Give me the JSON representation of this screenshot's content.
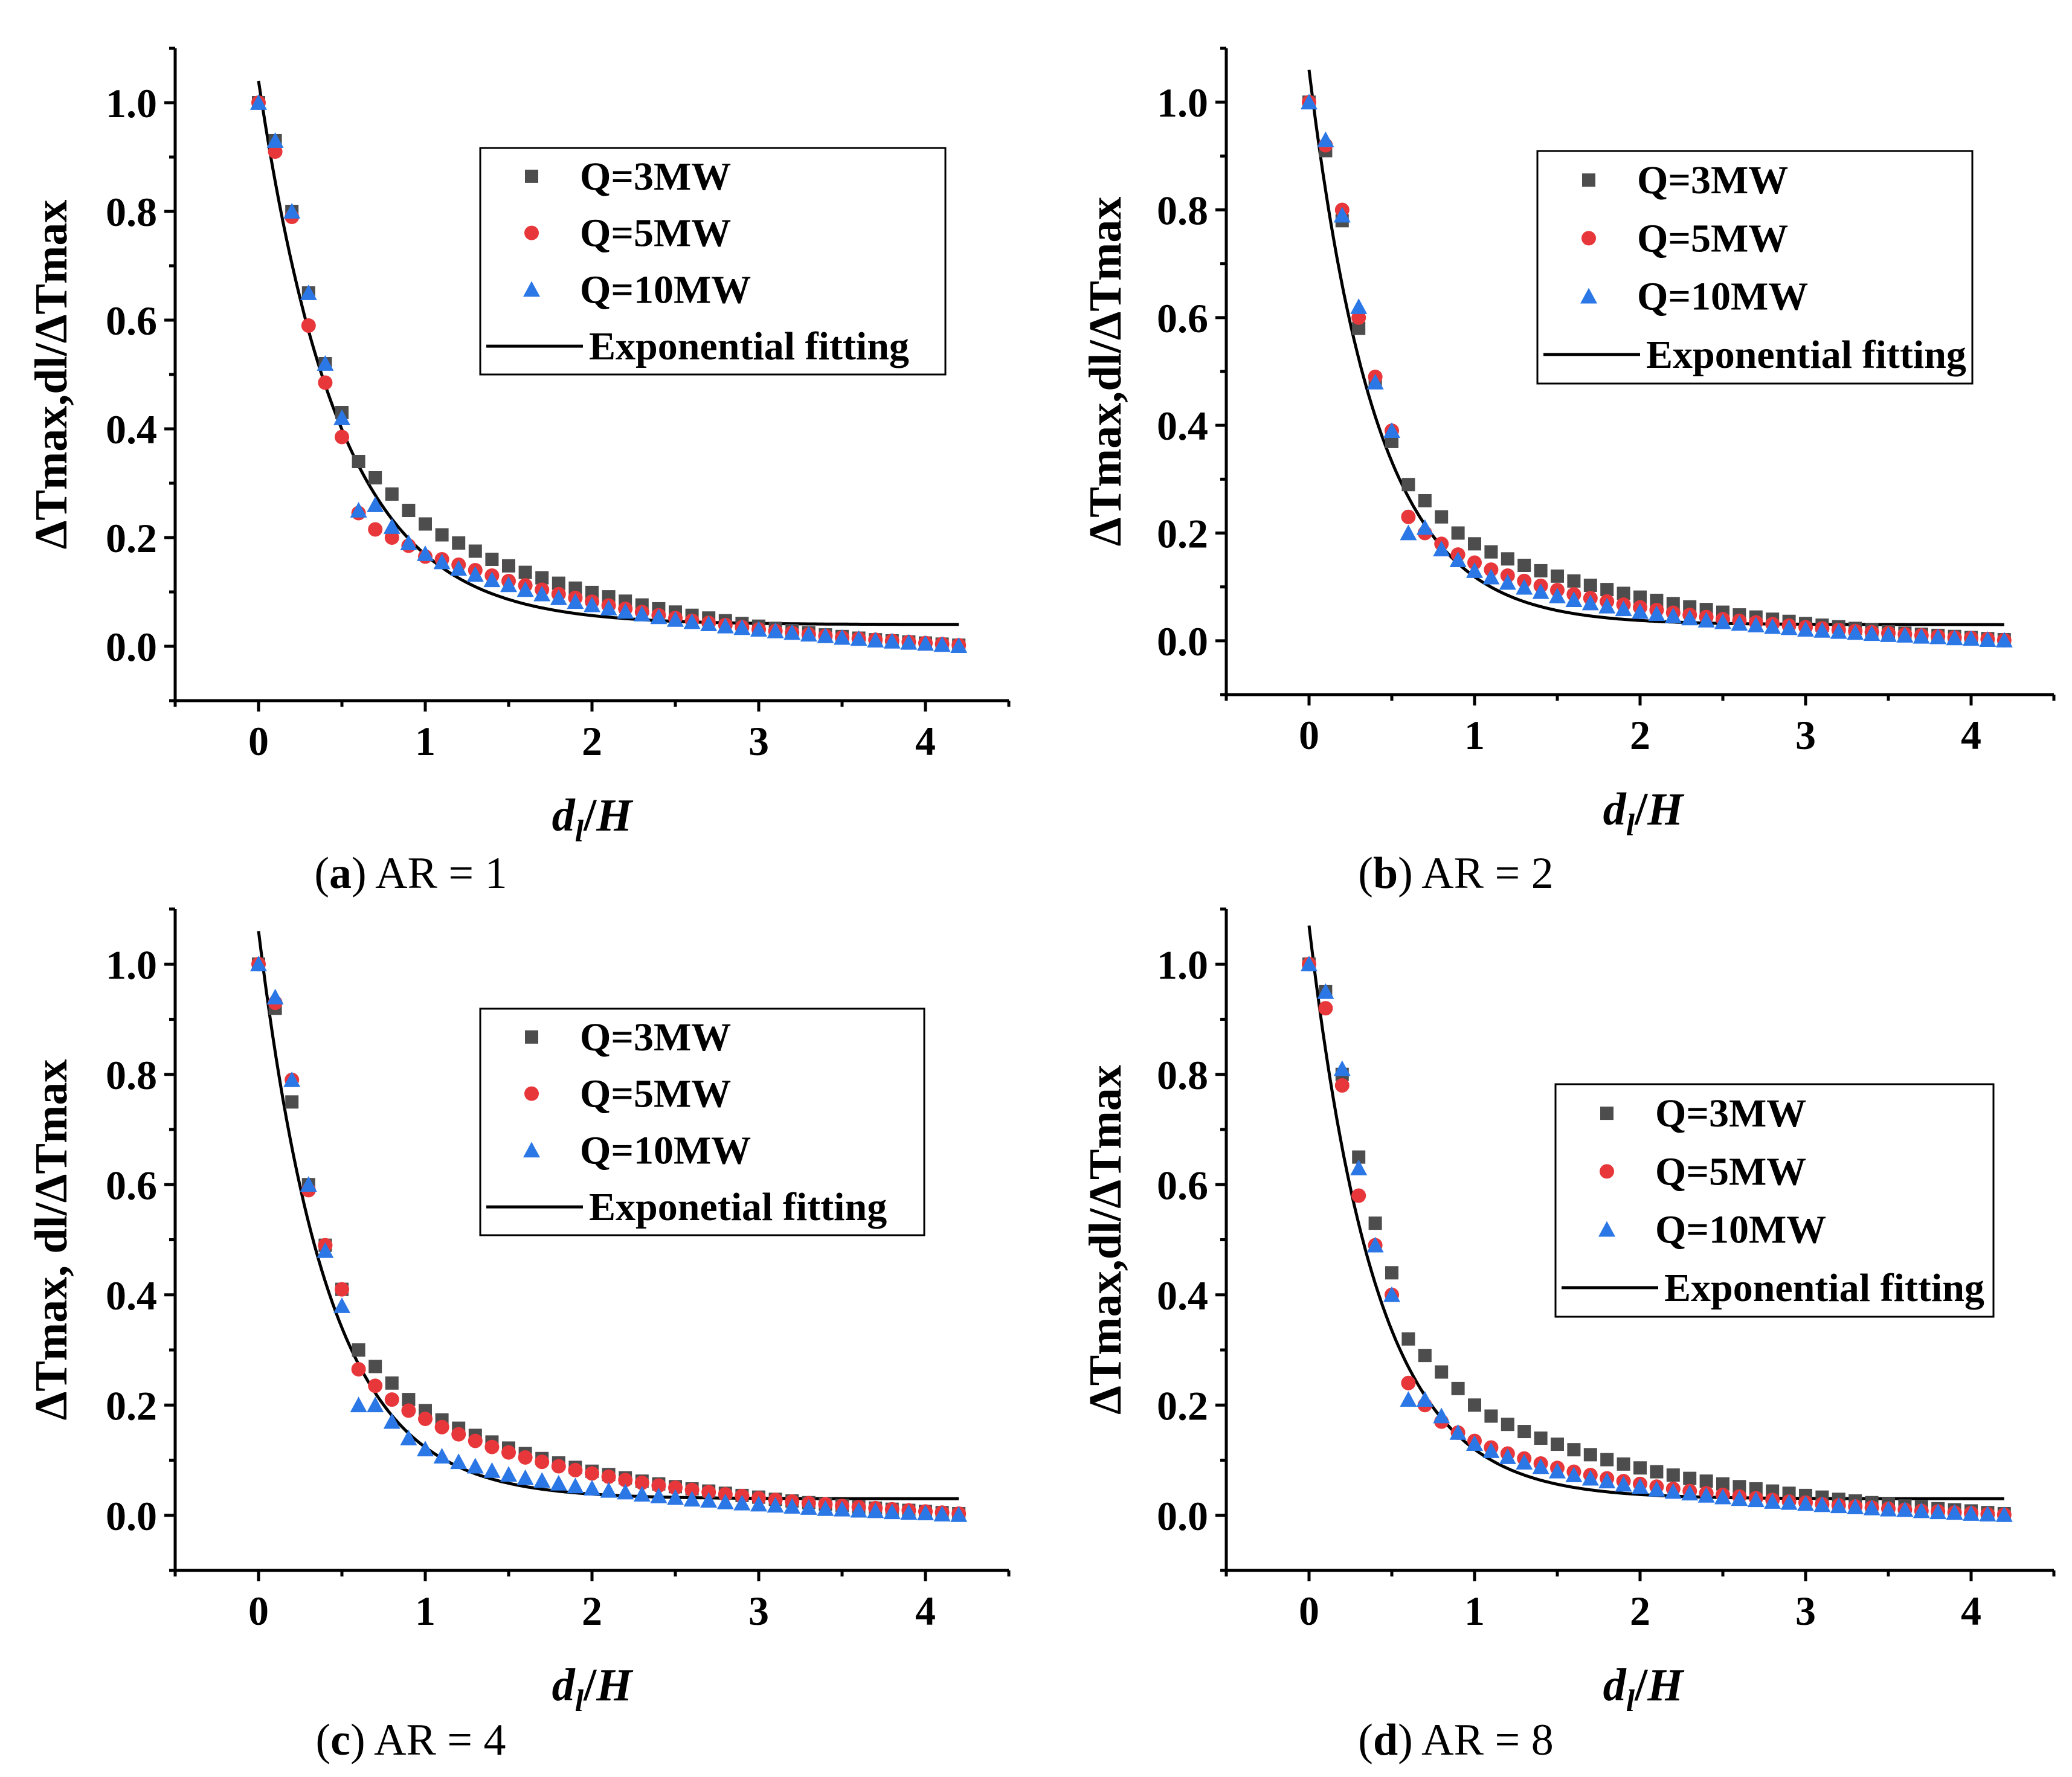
{
  "figure": {
    "series_names": [
      "Q=3MW",
      "Q=5MW",
      "Q=10MW"
    ],
    "series_colors": [
      "#4d4d4d",
      "#e8373a",
      "#2b77e6"
    ],
    "fit_color": "#000000",
    "tick_label_values": [
      "0",
      "1",
      "2",
      "3",
      "4"
    ],
    "y_tick_label_values": [
      "0.0",
      "0.2",
      "0.4",
      "0.6",
      "0.8",
      "1.0"
    ]
  },
  "chart_data": [
    {
      "id": "a",
      "type": "scatter",
      "caption_letter": "a",
      "caption_text": "AR = 1",
      "title": "",
      "xlabel": "dl/H",
      "ylabel": "ΔTmax,dl/ΔTmax",
      "xlim": [
        -0.5,
        4.5
      ],
      "ylim": [
        -0.1,
        1.1
      ],
      "xticks": [
        0,
        1,
        2,
        3,
        4
      ],
      "yticks": [
        0.0,
        0.2,
        0.4,
        0.6,
        0.8,
        1.0
      ],
      "legend": {
        "position": "top-right",
        "entries": [
          "Q=3MW",
          "Q=5MW",
          "Q=10MW",
          "Exponential fitting"
        ]
      },
      "x": [
        0.0,
        0.1,
        0.2,
        0.3,
        0.4,
        0.5,
        0.6,
        0.7,
        0.8,
        0.9,
        1.0,
        1.1,
        1.2,
        1.3,
        1.4,
        1.5,
        1.6,
        1.7,
        1.8,
        1.9,
        2.0,
        2.1,
        2.2,
        2.3,
        2.4,
        2.5,
        2.6,
        2.7,
        2.8,
        2.9,
        3.0,
        3.1,
        3.2,
        3.3,
        3.4,
        3.5,
        3.6,
        3.7,
        3.8,
        3.9,
        4.0,
        4.1,
        4.2
      ],
      "series": [
        {
          "name": "Q=3MW",
          "values": [
            1.0,
            0.93,
            0.8,
            0.65,
            0.52,
            0.43,
            0.34,
            0.31,
            0.28,
            0.25,
            0.225,
            0.205,
            0.19,
            0.175,
            0.16,
            0.148,
            0.136,
            0.126,
            0.116,
            0.107,
            0.099,
            0.091,
            0.083,
            0.076,
            0.069,
            0.063,
            0.057,
            0.052,
            0.047,
            0.042,
            0.037,
            0.033,
            0.029,
            0.025,
            0.021,
            0.018,
            0.015,
            0.012,
            0.01,
            0.008,
            0.006,
            0.004,
            0.002
          ]
        },
        {
          "name": "Q=5MW",
          "values": [
            1.0,
            0.91,
            0.79,
            0.59,
            0.485,
            0.385,
            0.245,
            0.215,
            0.2,
            0.185,
            0.165,
            0.16,
            0.15,
            0.14,
            0.13,
            0.12,
            0.112,
            0.104,
            0.096,
            0.089,
            0.082,
            0.075,
            0.069,
            0.063,
            0.057,
            0.052,
            0.047,
            0.043,
            0.039,
            0.035,
            0.031,
            0.028,
            0.025,
            0.022,
            0.019,
            0.016,
            0.014,
            0.012,
            0.01,
            0.008,
            0.006,
            0.004,
            0.002
          ]
        },
        {
          "name": "Q=10MW",
          "values": [
            1.0,
            0.93,
            0.8,
            0.65,
            0.52,
            0.42,
            0.25,
            0.26,
            0.22,
            0.19,
            0.17,
            0.155,
            0.143,
            0.132,
            0.122,
            0.113,
            0.104,
            0.096,
            0.089,
            0.082,
            0.076,
            0.07,
            0.064,
            0.059,
            0.054,
            0.049,
            0.045,
            0.041,
            0.037,
            0.034,
            0.031,
            0.028,
            0.025,
            0.022,
            0.019,
            0.016,
            0.014,
            0.011,
            0.009,
            0.007,
            0.005,
            0.003,
            0.001
          ]
        }
      ],
      "fit": {
        "name": "Exponential fitting",
        "a": 1.0,
        "b": 2.05,
        "c": 0.04,
        "x_range": [
          0.0,
          4.2
        ]
      }
    },
    {
      "id": "b",
      "type": "scatter",
      "caption_letter": "b",
      "caption_text": "AR = 2",
      "title": "",
      "xlabel": "dl/H",
      "ylabel": "ΔTmax,dl/ΔTmax",
      "xlim": [
        -0.5,
        4.5
      ],
      "ylim": [
        -0.1,
        1.1
      ],
      "xticks": [
        0,
        1,
        2,
        3,
        4
      ],
      "yticks": [
        0.0,
        0.2,
        0.4,
        0.6,
        0.8,
        1.0
      ],
      "legend": {
        "position": "top-right",
        "entries": [
          "Q=3MW",
          "Q=5MW",
          "Q=10MW",
          "Exponential fitting"
        ]
      },
      "x": [
        0.0,
        0.1,
        0.2,
        0.3,
        0.4,
        0.5,
        0.6,
        0.7,
        0.8,
        0.9,
        1.0,
        1.1,
        1.2,
        1.3,
        1.4,
        1.5,
        1.6,
        1.7,
        1.8,
        1.9,
        2.0,
        2.1,
        2.2,
        2.3,
        2.4,
        2.5,
        2.6,
        2.7,
        2.8,
        2.9,
        3.0,
        3.1,
        3.2,
        3.3,
        3.4,
        3.5,
        3.6,
        3.7,
        3.8,
        3.9,
        4.0,
        4.1,
        4.2
      ],
      "series": [
        {
          "name": "Q=3MW",
          "values": [
            1.0,
            0.91,
            0.78,
            0.58,
            0.48,
            0.37,
            0.29,
            0.26,
            0.23,
            0.2,
            0.18,
            0.165,
            0.152,
            0.14,
            0.13,
            0.12,
            0.111,
            0.103,
            0.095,
            0.088,
            0.081,
            0.075,
            0.069,
            0.063,
            0.058,
            0.053,
            0.048,
            0.044,
            0.04,
            0.036,
            0.032,
            0.029,
            0.026,
            0.023,
            0.02,
            0.017,
            0.014,
            0.012,
            0.01,
            0.008,
            0.006,
            0.004,
            0.002
          ]
        },
        {
          "name": "Q=5MW",
          "values": [
            1.0,
            0.92,
            0.8,
            0.6,
            0.49,
            0.39,
            0.23,
            0.2,
            0.18,
            0.16,
            0.145,
            0.132,
            0.121,
            0.111,
            0.102,
            0.094,
            0.086,
            0.079,
            0.073,
            0.067,
            0.062,
            0.057,
            0.052,
            0.048,
            0.044,
            0.04,
            0.037,
            0.034,
            0.031,
            0.028,
            0.025,
            0.023,
            0.02,
            0.018,
            0.016,
            0.014,
            0.012,
            0.01,
            0.008,
            0.006,
            0.005,
            0.003,
            0.001
          ]
        },
        {
          "name": "Q=10MW",
          "values": [
            1.0,
            0.93,
            0.79,
            0.62,
            0.48,
            0.39,
            0.2,
            0.21,
            0.17,
            0.15,
            0.13,
            0.118,
            0.108,
            0.099,
            0.091,
            0.083,
            0.076,
            0.07,
            0.064,
            0.059,
            0.054,
            0.05,
            0.046,
            0.042,
            0.038,
            0.035,
            0.032,
            0.029,
            0.026,
            0.024,
            0.021,
            0.019,
            0.017,
            0.015,
            0.013,
            0.011,
            0.01,
            0.008,
            0.007,
            0.005,
            0.004,
            0.002,
            0.001
          ]
        }
      ],
      "fit": {
        "name": "Exponential fitting",
        "a": 1.03,
        "b": 2.45,
        "c": 0.03,
        "x_range": [
          0.0,
          4.2
        ]
      }
    },
    {
      "id": "c",
      "type": "scatter",
      "caption_letter": "c",
      "caption_text": "AR = 4",
      "title": "",
      "xlabel": "dl/H",
      "ylabel": "ΔTmax, dl/ΔTmax",
      "xlim": [
        -0.5,
        4.5
      ],
      "ylim": [
        -0.1,
        1.1
      ],
      "xticks": [
        0,
        1,
        2,
        3,
        4
      ],
      "yticks": [
        0.0,
        0.2,
        0.4,
        0.6,
        0.8,
        1.0
      ],
      "legend": {
        "position": "top-right",
        "entries": [
          "Q=3MW",
          "Q=5MW",
          "Q=10MW",
          "Exponetial fitting"
        ]
      },
      "x": [
        0.0,
        0.1,
        0.2,
        0.3,
        0.4,
        0.5,
        0.6,
        0.7,
        0.8,
        0.9,
        1.0,
        1.1,
        1.2,
        1.3,
        1.4,
        1.5,
        1.6,
        1.7,
        1.8,
        1.9,
        2.0,
        2.1,
        2.2,
        2.3,
        2.4,
        2.5,
        2.6,
        2.7,
        2.8,
        2.9,
        3.0,
        3.1,
        3.2,
        3.3,
        3.4,
        3.5,
        3.6,
        3.7,
        3.8,
        3.9,
        4.0,
        4.1,
        4.2
      ],
      "series": [
        {
          "name": "Q=3MW",
          "values": [
            1.0,
            0.92,
            0.75,
            0.6,
            0.49,
            0.41,
            0.3,
            0.27,
            0.24,
            0.21,
            0.19,
            0.173,
            0.158,
            0.145,
            0.133,
            0.122,
            0.112,
            0.103,
            0.095,
            0.087,
            0.08,
            0.074,
            0.068,
            0.062,
            0.057,
            0.052,
            0.048,
            0.044,
            0.04,
            0.036,
            0.033,
            0.029,
            0.026,
            0.023,
            0.02,
            0.018,
            0.015,
            0.013,
            0.011,
            0.009,
            0.007,
            0.005,
            0.003
          ]
        },
        {
          "name": "Q=5MW",
          "values": [
            1.0,
            0.93,
            0.79,
            0.59,
            0.49,
            0.41,
            0.265,
            0.235,
            0.21,
            0.19,
            0.175,
            0.16,
            0.147,
            0.135,
            0.124,
            0.114,
            0.105,
            0.097,
            0.089,
            0.082,
            0.076,
            0.07,
            0.064,
            0.059,
            0.054,
            0.05,
            0.046,
            0.042,
            0.038,
            0.035,
            0.031,
            0.028,
            0.025,
            0.022,
            0.02,
            0.017,
            0.015,
            0.013,
            0.011,
            0.009,
            0.007,
            0.005,
            0.003
          ]
        },
        {
          "name": "Q=10MW",
          "values": [
            1.0,
            0.94,
            0.79,
            0.6,
            0.48,
            0.38,
            0.2,
            0.2,
            0.17,
            0.14,
            0.12,
            0.107,
            0.097,
            0.089,
            0.081,
            0.074,
            0.068,
            0.063,
            0.058,
            0.053,
            0.049,
            0.045,
            0.042,
            0.038,
            0.035,
            0.032,
            0.029,
            0.027,
            0.024,
            0.022,
            0.02,
            0.018,
            0.016,
            0.014,
            0.012,
            0.011,
            0.009,
            0.008,
            0.006,
            0.005,
            0.004,
            0.002,
            0.001
          ]
        }
      ],
      "fit": {
        "name": "Exponetial fitting",
        "a": 1.03,
        "b": 2.4,
        "c": 0.03,
        "x_range": [
          0.0,
          4.2
        ]
      }
    },
    {
      "id": "d",
      "type": "scatter",
      "caption_letter": "d",
      "caption_text": "AR = 8",
      "title": "",
      "xlabel": "dl/H",
      "ylabel": "ΔTmax,dl/ΔTmax",
      "xlim": [
        -0.5,
        4.5
      ],
      "ylim": [
        -0.1,
        1.1
      ],
      "xticks": [
        0,
        1,
        2,
        3,
        4
      ],
      "yticks": [
        0.0,
        0.2,
        0.4,
        0.6,
        0.8,
        1.0
      ],
      "legend": {
        "position": "right",
        "entries": [
          "Q=3MW",
          "Q=5MW",
          "Q=10MW",
          "Exponential fitting"
        ]
      },
      "x": [
        0.0,
        0.1,
        0.2,
        0.3,
        0.4,
        0.5,
        0.6,
        0.7,
        0.8,
        0.9,
        1.0,
        1.1,
        1.2,
        1.3,
        1.4,
        1.5,
        1.6,
        1.7,
        1.8,
        1.9,
        2.0,
        2.1,
        2.2,
        2.3,
        2.4,
        2.5,
        2.6,
        2.7,
        2.8,
        2.9,
        3.0,
        3.1,
        3.2,
        3.3,
        3.4,
        3.5,
        3.6,
        3.7,
        3.8,
        3.9,
        4.0,
        4.1,
        4.2
      ],
      "series": [
        {
          "name": "Q=3MW",
          "values": [
            1.0,
            0.95,
            0.8,
            0.65,
            0.53,
            0.44,
            0.32,
            0.29,
            0.26,
            0.23,
            0.2,
            0.18,
            0.165,
            0.152,
            0.14,
            0.129,
            0.119,
            0.11,
            0.101,
            0.093,
            0.086,
            0.079,
            0.073,
            0.067,
            0.062,
            0.057,
            0.052,
            0.048,
            0.044,
            0.04,
            0.036,
            0.033,
            0.029,
            0.026,
            0.023,
            0.02,
            0.017,
            0.015,
            0.012,
            0.01,
            0.008,
            0.005,
            0.003
          ]
        },
        {
          "name": "Q=5MW",
          "values": [
            1.0,
            0.92,
            0.78,
            0.58,
            0.49,
            0.4,
            0.24,
            0.2,
            0.17,
            0.15,
            0.135,
            0.123,
            0.112,
            0.103,
            0.094,
            0.086,
            0.079,
            0.073,
            0.067,
            0.062,
            0.057,
            0.052,
            0.048,
            0.044,
            0.04,
            0.037,
            0.034,
            0.031,
            0.028,
            0.025,
            0.023,
            0.02,
            0.018,
            0.016,
            0.014,
            0.012,
            0.01,
            0.008,
            0.007,
            0.005,
            0.004,
            0.002,
            0.001
          ]
        },
        {
          "name": "Q=10MW",
          "values": [
            1.0,
            0.95,
            0.81,
            0.63,
            0.49,
            0.4,
            0.21,
            0.21,
            0.18,
            0.15,
            0.13,
            0.117,
            0.106,
            0.096,
            0.088,
            0.08,
            0.073,
            0.067,
            0.062,
            0.056,
            0.052,
            0.047,
            0.043,
            0.04,
            0.036,
            0.033,
            0.03,
            0.028,
            0.025,
            0.023,
            0.021,
            0.019,
            0.017,
            0.015,
            0.013,
            0.011,
            0.01,
            0.008,
            0.006,
            0.005,
            0.003,
            0.002,
            0.001
          ]
        }
      ],
      "fit": {
        "name": "Exponential fitting",
        "a": 1.04,
        "b": 2.45,
        "c": 0.03,
        "x_range": [
          0.0,
          4.2
        ]
      }
    }
  ]
}
